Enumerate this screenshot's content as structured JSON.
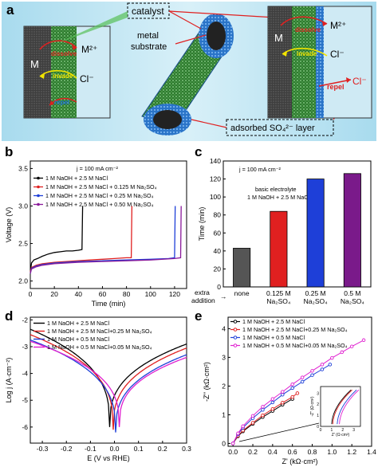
{
  "panel_labels": {
    "a": "a",
    "b": "b",
    "c": "c",
    "d": "d",
    "e": "e"
  },
  "schematic": {
    "catalyst": "catalyst",
    "metal_substrate_1": "metal",
    "metal_substrate_2": "substrate",
    "adsorbed_layer": "adsorbed SO₄²⁻ layer",
    "left_inset": {
      "m": "M",
      "m2": "M²⁺",
      "cl": "Cl⁻",
      "dissolve": "dissolve",
      "invade": "invade",
      "repel": "repel"
    },
    "right_inset": {
      "m": "M",
      "m2": "M²⁺",
      "cl": "Cl⁻",
      "dissolve": "dissolve",
      "invade": "invade",
      "repel": "repel",
      "cl_out": "Cl⁻"
    },
    "colors": {
      "bg": "#bfe3f1",
      "inset_bg": "#cfeaf4",
      "metal": "#4b4b4b",
      "catalyst": "#3a8a3a",
      "red": "#e02020",
      "yellow": "#f2e400",
      "blue": "#1e6fd8"
    }
  },
  "chart_data": [
    {
      "id": "b",
      "type": "line",
      "annotation": "j = 100 mA cm⁻²",
      "xlabel": "Time (min)",
      "ylabel": "Voltage (V)",
      "xlim": [
        0,
        130
      ],
      "ylim": [
        1.9,
        3.6
      ],
      "xticks": [
        0,
        20,
        40,
        60,
        80,
        100,
        120
      ],
      "yticks": [
        2.0,
        2.5,
        3.0,
        3.5
      ],
      "series": [
        {
          "name": "1 M NaOH + 2.5 M NaCl",
          "color": "#000000",
          "x": [
            0,
            1,
            3,
            6,
            10,
            15,
            20,
            25,
            30,
            35,
            40,
            43,
            43.5
          ],
          "y": [
            2.12,
            2.24,
            2.28,
            2.3,
            2.33,
            2.36,
            2.38,
            2.39,
            2.4,
            2.4,
            2.41,
            2.42,
            3.0
          ]
        },
        {
          "name": "1 M NaOH + 2.5 M NaCl + 0.125 M Na₂SO₄",
          "color": "#e02020",
          "x": [
            0,
            1,
            5,
            10,
            20,
            30,
            40,
            50,
            60,
            70,
            80,
            84,
            84.5
          ],
          "y": [
            2.12,
            2.18,
            2.21,
            2.23,
            2.25,
            2.26,
            2.27,
            2.28,
            2.29,
            2.3,
            2.31,
            2.31,
            3.0
          ]
        },
        {
          "name": "1 M NaOH + 2.5 M NaCl + 0.25 M Na₂SO₄",
          "color": "#1e3fd8",
          "x": [
            0,
            1,
            5,
            10,
            20,
            40,
            60,
            80,
            100,
            115,
            120,
            120.5
          ],
          "y": [
            2.1,
            2.17,
            2.2,
            2.22,
            2.24,
            2.26,
            2.27,
            2.28,
            2.29,
            2.3,
            2.31,
            3.0
          ]
        },
        {
          "name": "1 M NaOH + 2.5 M NaCl + 0.50 M Na₂SO₄",
          "color": "#8a1a9a",
          "x": [
            0,
            1,
            5,
            10,
            20,
            40,
            60,
            80,
            100,
            120,
            125,
            125.5
          ],
          "y": [
            2.1,
            2.16,
            2.19,
            2.21,
            2.23,
            2.25,
            2.26,
            2.27,
            2.28,
            2.3,
            2.31,
            3.0
          ]
        }
      ]
    },
    {
      "id": "c",
      "type": "bar",
      "annotation": "j = 100 mA cm⁻²",
      "note_line1": "basic electrolyte",
      "note_line2": "1 M NaOH + 2.5 M NaCl",
      "ylabel": "Time (min)",
      "ylim": [
        0,
        140
      ],
      "yticks": [
        0,
        20,
        40,
        60,
        80,
        100,
        120,
        140
      ],
      "extra_label_1": "extra",
      "extra_label_2": "addition",
      "arrow": "→",
      "categories": [
        "none",
        "0.125 M",
        "0.25 M",
        "0.5 M"
      ],
      "categories_sub": [
        "",
        "Na₂SO₄",
        "Na₂SO₄",
        "Na₂SO₄"
      ],
      "values": [
        43,
        84,
        120,
        126
      ],
      "colors": [
        "#555555",
        "#e02020",
        "#1e3fd8",
        "#7a1a8a"
      ]
    },
    {
      "id": "d",
      "type": "line",
      "xlabel": "E (V vs RHE)",
      "ylabel": "Log j  (A·cm⁻²)",
      "xlim": [
        -0.35,
        0.3
      ],
      "ylim": [
        -6.6,
        -1.9
      ],
      "xticks": [
        -0.3,
        -0.2,
        -0.1,
        0.0,
        0.1,
        0.2,
        0.3
      ],
      "yticks": [
        -6,
        -5,
        -4,
        -3,
        -2
      ],
      "series": [
        {
          "name": "1 M NaOH + 2.5 M NaCl",
          "color": "#000000",
          "corr": -0.02,
          "left": -2.35,
          "right": -2.9,
          "min": -6.0
        },
        {
          "name": "1 M NaOH + 2.5 M NaCl+0.25 M Na₂SO₄",
          "color": "#e02020",
          "corr": -0.005,
          "left": -2.55,
          "right": -3.05,
          "min": -6.1
        },
        {
          "name": "1 M NaOH + 0.5 M NaCl",
          "color": "#1e3fd8",
          "corr": 0.005,
          "left": -2.75,
          "right": -3.3,
          "min": -6.2
        },
        {
          "name": "1 M NaOH + 0.5 M NaCl+0.05 M Na₂SO₄",
          "color": "#e020d0",
          "corr": 0.02,
          "left": -2.8,
          "right": -3.4,
          "min": -6.0
        }
      ]
    },
    {
      "id": "e",
      "type": "scatter",
      "xlabel": "Z' (kΩ·cm²)",
      "ylabel": "-Z'' (kΩ·cm²)",
      "xlim": [
        -0.05,
        1.4
      ],
      "ylim": [
        -0.1,
        4.4
      ],
      "xticks": [
        0.0,
        0.2,
        0.4,
        0.6,
        0.8,
        1.0,
        1.2,
        1.4
      ],
      "yticks": [
        0,
        1,
        2,
        3,
        4
      ],
      "series": [
        {
          "name": "1 M NaOH + 2.5 M NaCl",
          "color": "#000000",
          "x": [
            0.0,
            0.05,
            0.1,
            0.2,
            0.3,
            0.4,
            0.5,
            0.6
          ],
          "y": [
            0.0,
            0.25,
            0.42,
            0.68,
            0.92,
            1.13,
            1.35,
            1.55
          ]
        },
        {
          "name": "1 M NaOH + 2.5 M NaCl+0.25 M Na₂SO₄",
          "color": "#e02020",
          "x": [
            0.0,
            0.05,
            0.1,
            0.2,
            0.3,
            0.4,
            0.5,
            0.6,
            0.65
          ],
          "y": [
            0.0,
            0.27,
            0.45,
            0.72,
            0.98,
            1.2,
            1.42,
            1.62,
            1.75
          ]
        },
        {
          "name": "1 M NaOH + 0.5 M NaCl",
          "color": "#1e3fd8",
          "x": [
            0.0,
            0.05,
            0.1,
            0.2,
            0.3,
            0.4,
            0.5,
            0.6,
            0.7,
            0.8,
            0.9,
            0.98
          ],
          "y": [
            0.0,
            0.32,
            0.55,
            0.88,
            1.17,
            1.43,
            1.7,
            1.93,
            2.15,
            2.38,
            2.58,
            2.75
          ]
        },
        {
          "name": "1 M NaOH + 0.5 M NaCl+0.05 M Na₂SO₄",
          "color": "#e020d0",
          "x": [
            0.0,
            0.05,
            0.1,
            0.2,
            0.3,
            0.4,
            0.5,
            0.6,
            0.7,
            0.8,
            0.9,
            1.0,
            1.1,
            1.2,
            1.32
          ],
          "y": [
            0.0,
            0.35,
            0.6,
            0.96,
            1.28,
            1.55,
            1.8,
            2.06,
            2.3,
            2.53,
            2.75,
            2.98,
            3.18,
            3.38,
            3.6
          ]
        }
      ],
      "inset": {
        "xlabel": "Z' (Ω·cm²)",
        "ylabel": "-Z'' (Ω·cm²)",
        "xticks": [
          0,
          1,
          2,
          3
        ],
        "yticks": [
          0,
          1,
          2,
          3
        ],
        "xlim": [
          0,
          3.6
        ],
        "ylim": [
          0,
          3.6
        ]
      }
    }
  ]
}
